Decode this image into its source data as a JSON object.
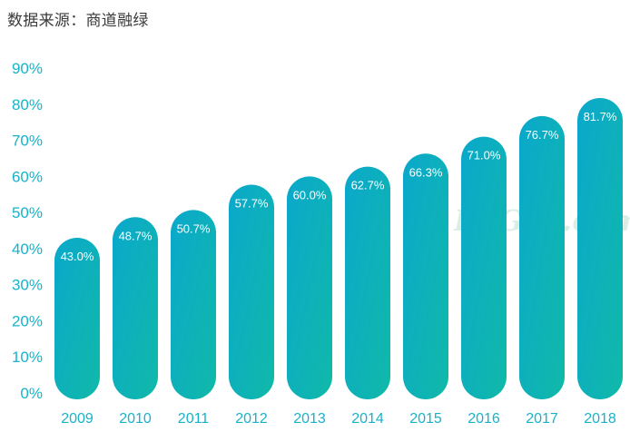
{
  "source_text": "数据来源：商道融绿",
  "watermark_text": "ESGzh.com",
  "colors": {
    "bar_top": "#0aa8cc",
    "bar_bottom": "#10b9a8",
    "axis_text": "#17b3c9",
    "label_text": "#ffffff"
  },
  "chart_data": {
    "type": "bar",
    "title": "",
    "xlabel": "",
    "ylabel": "",
    "categories": [
      "2009",
      "2010",
      "2011",
      "2012",
      "2013",
      "2014",
      "2015",
      "2016",
      "2017",
      "2018"
    ],
    "values": [
      43.0,
      48.7,
      50.7,
      57.7,
      60.0,
      62.7,
      66.3,
      71.0,
      76.7,
      81.7
    ],
    "data_labels": [
      "43.0%",
      "48.7%",
      "50.7%",
      "57.7%",
      "60.0%",
      "62.7%",
      "66.3%",
      "71.0%",
      "76.7%",
      "81.7%"
    ],
    "ylim": [
      0,
      90
    ],
    "yticks": [
      "0%",
      "10%",
      "20%",
      "30%",
      "40%",
      "50%",
      "60%",
      "70%",
      "80%",
      "90%"
    ],
    "grid": false,
    "legend": "none"
  }
}
